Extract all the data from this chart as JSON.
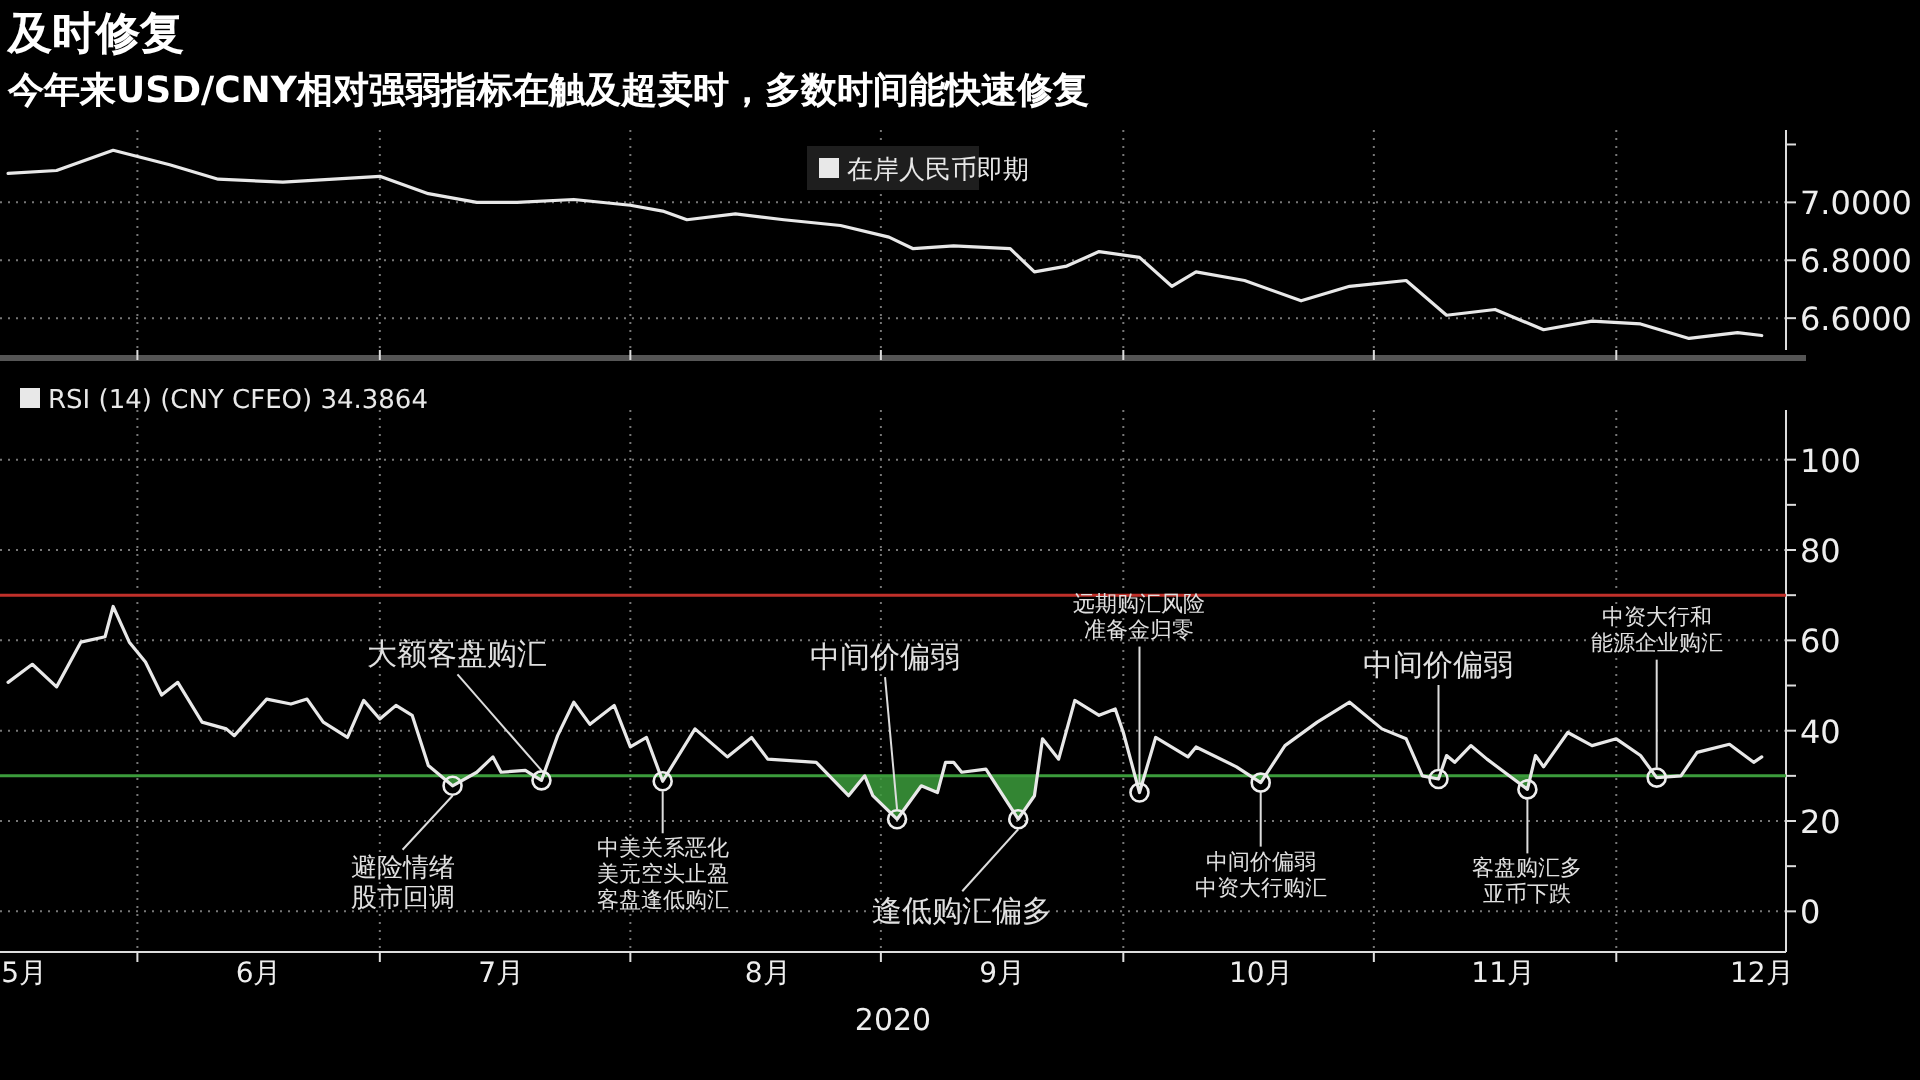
{
  "chart_data": [
    {
      "type": "line",
      "title": "及时修复",
      "subtitle": "今年来USD/CNY相对强弱指标在触及超卖时，多数时间能快速修复",
      "legend": "top",
      "grid": true,
      "tick_labels": "y",
      "xlim": [
        "2020-05-15",
        "2020-12-22"
      ],
      "xticks": [
        {
          "value": "2020-06-01",
          "label": null
        },
        {
          "value": "2020-07-01",
          "label": null
        },
        {
          "value": "2020-08-01",
          "label": null
        },
        {
          "value": "2020-09-01",
          "label": null
        },
        {
          "value": "2020-10-01",
          "label": null
        },
        {
          "value": "2020-11-01",
          "label": null
        },
        {
          "value": "2020-12-01",
          "label": null
        }
      ],
      "ylim": [
        6.49,
        7.25
      ],
      "yticks": [
        {
          "value": 7.2,
          "label": null
        },
        {
          "value": 7.0,
          "label": "7.0000"
        },
        {
          "value": 6.8,
          "label": "6.8000"
        },
        {
          "value": 6.6,
          "label": "6.6000"
        }
      ],
      "series": [
        {
          "name": "在岸人民币即期",
          "color": "#e8e8e8",
          "x": [
            "2020-05-16",
            "2020-05-22",
            "2020-05-29",
            "2020-06-05",
            "2020-06-11",
            "2020-06-19",
            "2020-07-01",
            "2020-07-07",
            "2020-07-13",
            "2020-07-18",
            "2020-07-25",
            "2020-08-01",
            "2020-08-05",
            "2020-08-08",
            "2020-08-14",
            "2020-08-20",
            "2020-08-27",
            "2020-09-02",
            "2020-09-05",
            "2020-09-10",
            "2020-09-17",
            "2020-09-20",
            "2020-09-24",
            "2020-09-28",
            "2020-10-03",
            "2020-10-07",
            "2020-10-10",
            "2020-10-16",
            "2020-10-23",
            "2020-10-29",
            "2020-11-05",
            "2020-11-10",
            "2020-11-16",
            "2020-11-22",
            "2020-11-28",
            "2020-12-04",
            "2020-12-10",
            "2020-12-16",
            "2020-12-19"
          ],
          "values": [
            7.1,
            7.11,
            7.18,
            7.13,
            7.08,
            7.07,
            7.09,
            7.03,
            7.0,
            7.0,
            7.01,
            6.99,
            6.97,
            6.94,
            6.96,
            6.94,
            6.92,
            6.88,
            6.84,
            6.85,
            6.84,
            6.76,
            6.78,
            6.83,
            6.81,
            6.71,
            6.76,
            6.73,
            6.66,
            6.71,
            6.73,
            6.61,
            6.63,
            6.56,
            6.59,
            6.58,
            6.53,
            6.55,
            6.54
          ]
        }
      ]
    },
    {
      "type": "line",
      "legend": "top left",
      "grid": true,
      "xlabel": "2020",
      "xlim": [
        "2020-05-15",
        "2020-12-22"
      ],
      "xticks": [
        {
          "value": "2020-05-18",
          "label": "5月"
        },
        {
          "value": "2020-06-01",
          "label": null
        },
        {
          "value": "2020-06-16",
          "label": "6月"
        },
        {
          "value": "2020-07-01",
          "label": null
        },
        {
          "value": "2020-07-16",
          "label": "7月"
        },
        {
          "value": "2020-08-01",
          "label": null
        },
        {
          "value": "2020-08-18",
          "label": "8月"
        },
        {
          "value": "2020-09-01",
          "label": null
        },
        {
          "value": "2020-09-16",
          "label": "9月"
        },
        {
          "value": "2020-10-01",
          "label": null
        },
        {
          "value": "2020-10-18",
          "label": "10月"
        },
        {
          "value": "2020-11-01",
          "label": null
        },
        {
          "value": "2020-11-17",
          "label": "11月"
        },
        {
          "value": "2020-12-01",
          "label": null
        },
        {
          "value": "2020-12-19",
          "label": "12月"
        }
      ],
      "ylim": [
        -9,
        111
      ],
      "yticks": [
        0,
        {
          "value": 10,
          "label": null
        },
        20,
        {
          "value": 30,
          "label": null
        },
        40,
        {
          "value": 50,
          "label": null
        },
        60,
        {
          "value": 70,
          "label": null
        },
        80,
        {
          "value": 90,
          "label": null
        },
        100
      ],
      "ref_lines": [
        {
          "axis": "y",
          "value": 70,
          "color": "#c0302a"
        },
        {
          "axis": "y",
          "value": 30,
          "color": "#3c9c3c"
        }
      ],
      "series": [
        {
          "name": "RSI (14) (CNY CFEO) 34.3864",
          "color": "#e8e8e8",
          "x": [
            "2020-05-16",
            "2020-05-19",
            "2020-05-22",
            "2020-05-25",
            "2020-05-28",
            "2020-05-29",
            "2020-05-31",
            "2020-06-02",
            "2020-06-04",
            "2020-06-06",
            "2020-06-09",
            "2020-06-12",
            "2020-06-13",
            "2020-06-17",
            "2020-06-20",
            "2020-06-22",
            "2020-06-24",
            "2020-06-27",
            "2020-06-29",
            "2020-07-01",
            "2020-07-03",
            "2020-07-05",
            "2020-07-07",
            "2020-07-10",
            "2020-07-13",
            "2020-07-15",
            "2020-07-16",
            "2020-07-19",
            "2020-07-21",
            "2020-07-23",
            "2020-07-25",
            "2020-07-27",
            "2020-07-30",
            "2020-08-01",
            "2020-08-03",
            "2020-08-05",
            "2020-08-09",
            "2020-08-13",
            "2020-08-16",
            "2020-08-18",
            "2020-08-24",
            "2020-08-28",
            "2020-08-30",
            "2020-08-31",
            "2020-09-03",
            "2020-09-06",
            "2020-09-08",
            "2020-09-09",
            "2020-09-10",
            "2020-09-11",
            "2020-09-14",
            "2020-09-18",
            "2020-09-20",
            "2020-09-21",
            "2020-09-23",
            "2020-09-25",
            "2020-09-28",
            "2020-09-30",
            "2020-10-01",
            "2020-10-03",
            "2020-10-05",
            "2020-10-09",
            "2020-10-10",
            "2020-10-15",
            "2020-10-18",
            "2020-10-21",
            "2020-10-25",
            "2020-10-29",
            "2020-11-02",
            "2020-11-05",
            "2020-11-07",
            "2020-11-09",
            "2020-11-10",
            "2020-11-11",
            "2020-11-13",
            "2020-11-15",
            "2020-11-20",
            "2020-11-21",
            "2020-11-22",
            "2020-11-25",
            "2020-11-28",
            "2020-12-01",
            "2020-12-04",
            "2020-12-06",
            "2020-12-09",
            "2020-12-11",
            "2020-12-15",
            "2020-12-18",
            "2020-12-19"
          ],
          "values": [
            50.7,
            54.7,
            49.7,
            59.6,
            60.8,
            67.5,
            59.6,
            55.2,
            47.9,
            50.7,
            41.9,
            40.4,
            38.9,
            47,
            45.9,
            47,
            41.9,
            38.5,
            46.7,
            42.6,
            45.6,
            43.4,
            32.3,
            27.8,
            30.8,
            34.2,
            30.8,
            31.2,
            29,
            38.9,
            46.3,
            41.4,
            45.6,
            36.4,
            38.5,
            28.8,
            40.4,
            34.2,
            38.5,
            33.7,
            33,
            25.6,
            30,
            25.6,
            20.4,
            27.8,
            26.3,
            33,
            33,
            30.8,
            31.5,
            20.4,
            25.6,
            38.2,
            33.7,
            46.7,
            43.4,
            44.8,
            39.6,
            26.3,
            38.5,
            34.2,
            36.4,
            32,
            28.5,
            36.7,
            41.9,
            46.3,
            40.4,
            38.2,
            30,
            29.3,
            34.5,
            33,
            36.7,
            33.7,
            27,
            34.5,
            32,
            39.6,
            36.7,
            38.2,
            34.5,
            29.6,
            30,
            35.2,
            37,
            33,
            34.2
          ]
        }
      ],
      "annotations": [
        {
          "text": "避险情绪股市回调",
          "x": "2020-07-10",
          "y": 27.8
        },
        {
          "text": "大额客盘购汇",
          "x": "2020-07-21",
          "y": 29
        },
        {
          "text": "中美关系恶化美元空头止盈客盘逢低购汇",
          "x": "2020-08-05",
          "y": 28.8
        },
        {
          "text": "中间价偏弱",
          "x": "2020-09-03",
          "y": 20.4
        },
        {
          "text": "逢低购汇偏多",
          "x": "2020-09-18",
          "y": 20.4
        },
        {
          "text": "远期购汇风险准备金归零",
          "x": "2020-10-03",
          "y": 26.3
        },
        {
          "text": "中间价偏弱中资大行购汇",
          "x": "2020-10-18",
          "y": 28.5
        },
        {
          "text": "中间价偏弱",
          "x": "2020-11-09",
          "y": 29.3
        },
        {
          "text": "客盘购汇多亚币下跌",
          "x": "2020-11-20",
          "y": 27
        },
        {
          "text": "中资大行和能源企业购汇",
          "x": "2020-12-06",
          "y": 29.6
        }
      ]
    }
  ]
}
